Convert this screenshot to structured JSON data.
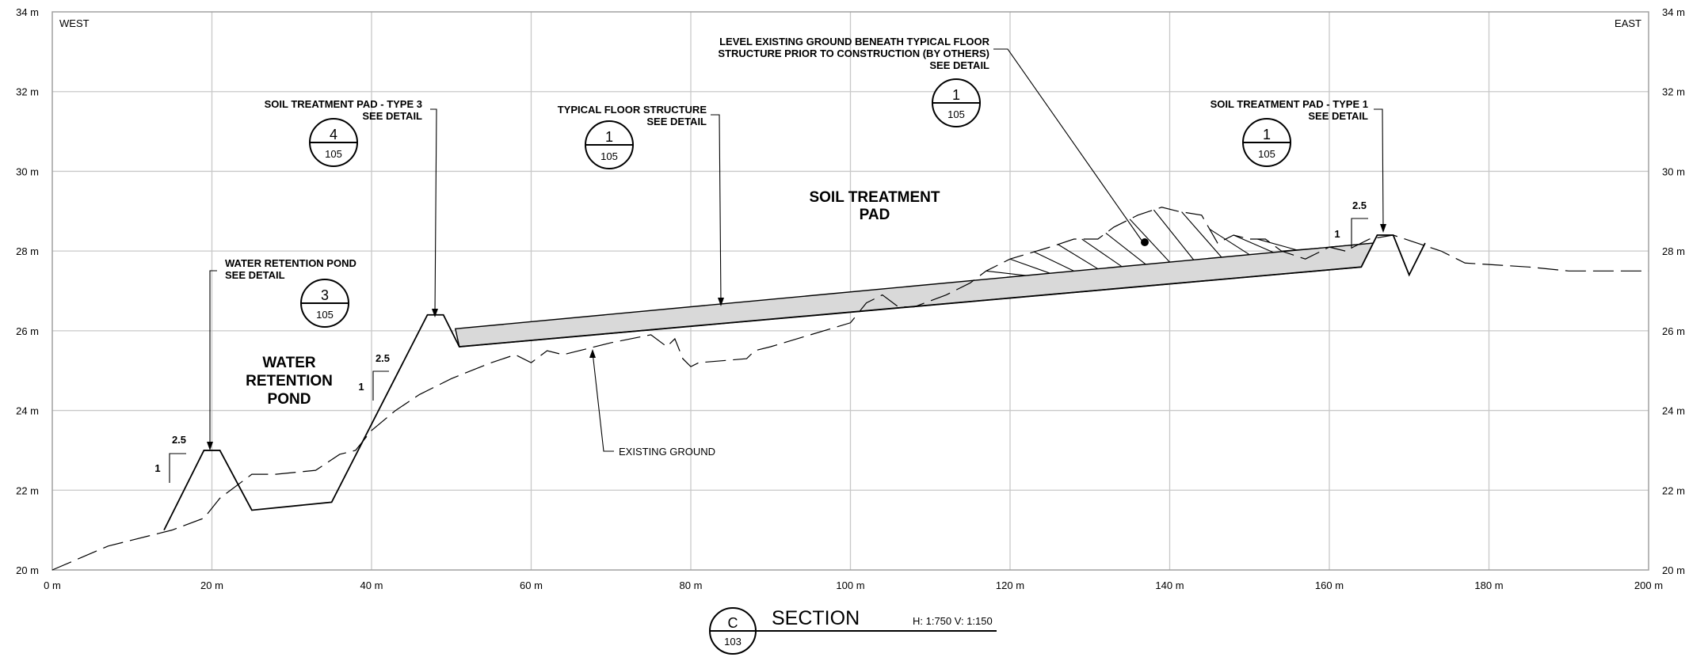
{
  "axes": {
    "x_ticks": [
      "0 m",
      "20 m",
      "40 m",
      "60 m",
      "80 m",
      "100 m",
      "120 m",
      "140 m",
      "160 m",
      "180 m",
      "200 m"
    ],
    "y_ticks": [
      "20 m",
      "22 m",
      "24 m",
      "26 m",
      "28 m",
      "30 m",
      "32 m",
      "34 m"
    ],
    "x_range": [
      0,
      200
    ],
    "y_range": [
      20,
      34
    ]
  },
  "corners": {
    "west": "WEST",
    "east": "EAST"
  },
  "labels": {
    "soil_treatment_pad": [
      "SOIL TREATMENT",
      "PAD"
    ],
    "water_retention_pond": [
      "WATER",
      "RETENTION",
      "POND"
    ],
    "existing_ground": "EXISTING GROUND"
  },
  "callouts": {
    "pad_type3": {
      "lines": [
        "SOIL TREATMENT PAD - TYPE 3",
        "SEE DETAIL"
      ],
      "detail": "4",
      "sheet": "105"
    },
    "floor_structure": {
      "lines": [
        "TYPICAL FLOOR STRUCTURE",
        "SEE DETAIL"
      ],
      "detail": "1",
      "sheet": "105"
    },
    "level_ground": {
      "lines": [
        "LEVEL EXISTING GROUND BENEATH TYPICAL FLOOR",
        "STRUCTURE PRIOR TO CONSTRUCTION  (BY OTHERS)",
        "SEE DETAIL"
      ],
      "detail": "1",
      "sheet": "105"
    },
    "pad_type1": {
      "lines": [
        "SOIL TREATMENT PAD - TYPE 1",
        "SEE DETAIL"
      ],
      "detail": "1",
      "sheet": "105"
    },
    "retention_pond": {
      "lines": [
        "WATER RETENTION POND",
        "SEE DETAIL"
      ],
      "detail": "3",
      "sheet": "105"
    }
  },
  "slopes": [
    {
      "run": "2.5",
      "rise": "1"
    },
    {
      "run": "2.5",
      "rise": "1"
    },
    {
      "run": "2.5",
      "rise": "1"
    }
  ],
  "section": {
    "letter": "C",
    "sheet": "103",
    "title": "SECTION",
    "scale": "H: 1:750  V: 1:150"
  },
  "colors": {
    "pad_fill": "#d9d9d9",
    "grid": "#c8c8c8"
  },
  "chart_data": {
    "type": "line",
    "xlabel": "",
    "ylabel": "",
    "xlim": [
      0,
      200
    ],
    "ylim": [
      20,
      34
    ],
    "series": [
      {
        "x": [
          0,
          7,
          15,
          19,
          21,
          25,
          28,
          33,
          36,
          38,
          40,
          43,
          46,
          50,
          55,
          58,
          60,
          62,
          64,
          70,
          75,
          77,
          78,
          79,
          80,
          81,
          87,
          88,
          90,
          95,
          100,
          102,
          104,
          106,
          108,
          112,
          115,
          117,
          120,
          125,
          128,
          131,
          133,
          136,
          139,
          141,
          144,
          146,
          148,
          150,
          152,
          154,
          157,
          160,
          162,
          165,
          168,
          171,
          174,
          177,
          185,
          190,
          198,
          200
        ],
        "y": [
          20,
          20.6,
          21.0,
          21.3,
          21.8,
          22.4,
          22.4,
          22.5,
          22.9,
          23.0,
          23.5,
          24.0,
          24.4,
          24.8,
          25.2,
          25.4,
          25.2,
          25.5,
          25.4,
          25.7,
          25.9,
          25.6,
          25.8,
          25.3,
          25.1,
          25.2,
          25.3,
          25.5,
          25.6,
          25.9,
          26.2,
          26.7,
          26.9,
          26.6,
          26.6,
          26.9,
          27.2,
          27.5,
          27.8,
          28.1,
          28.3,
          28.3,
          28.6,
          28.9,
          29.1,
          29.0,
          28.9,
          28.2,
          28.4,
          28.3,
          28.3,
          28.0,
          27.8,
          28.1,
          28.0,
          28.3,
          28.4,
          28.2,
          28.0,
          27.7,
          27.6,
          27.5,
          27.5,
          27.5
        ]
      },
      {
        "x": [
          14,
          19,
          21,
          25,
          35,
          47,
          49,
          51,
          164,
          166,
          168,
          170,
          172
        ],
        "y": [
          21.0,
          23.0,
          23.0,
          21.5,
          21.7,
          26.4,
          26.4,
          25.6,
          27.6,
          28.4,
          28.4,
          27.4,
          28.2
        ]
      }
    ]
  }
}
